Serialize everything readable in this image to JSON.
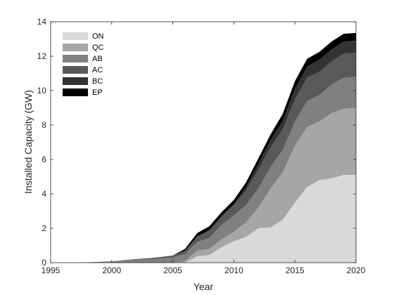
{
  "chart_data": {
    "type": "area",
    "stacked": true,
    "title": "",
    "xlabel": "Year",
    "ylabel": "Installed Capacity (GW)",
    "xlim": [
      1995,
      2020
    ],
    "ylim": [
      0,
      14
    ],
    "xticks": [
      "1995",
      "2000",
      "2005",
      "2010",
      "2015",
      "2020"
    ],
    "yticks": [
      "0",
      "2",
      "4",
      "6",
      "8",
      "10",
      "12",
      "14"
    ],
    "grid": false,
    "legend_position": "top-left",
    "x": [
      1995,
      1996,
      1997,
      1998,
      1999,
      2000,
      2001,
      2002,
      2003,
      2004,
      2005,
      2006,
      2007,
      2008,
      2009,
      2010,
      2011,
      2012,
      2013,
      2014,
      2015,
      2016,
      2017,
      2018,
      2019,
      2020
    ],
    "series": [
      {
        "name": "ON",
        "color": "#d9d9d9",
        "values": [
          0,
          0,
          0,
          0,
          0,
          0,
          0,
          0,
          0,
          0,
          0,
          0,
          0.38,
          0.45,
          0.9,
          1.25,
          1.5,
          2.0,
          2.05,
          2.5,
          3.5,
          4.4,
          4.8,
          4.9,
          5.1,
          5.1
        ]
      },
      {
        "name": "QC",
        "color": "#a6a6a6",
        "values": [
          0,
          0,
          0,
          0,
          0,
          0,
          0,
          0,
          0,
          0,
          0,
          0.1,
          0.32,
          0.35,
          0.45,
          0.55,
          0.85,
          1.2,
          2.25,
          2.75,
          3.3,
          3.5,
          3.4,
          3.8,
          3.85,
          3.9
        ]
      },
      {
        "name": "AB",
        "color": "#808080",
        "values": [
          0,
          0,
          0,
          0.02,
          0.05,
          0.08,
          0.13,
          0.17,
          0.2,
          0.25,
          0.3,
          0.4,
          0.5,
          0.65,
          0.85,
          0.95,
          1.0,
          1.1,
          1.25,
          1.3,
          1.4,
          1.5,
          1.55,
          1.65,
          1.8,
          1.8
        ]
      },
      {
        "name": "AC",
        "color": "#595959",
        "values": [
          0,
          0,
          0,
          0,
          0,
          0,
          0.02,
          0.04,
          0.06,
          0.08,
          0.12,
          0.2,
          0.32,
          0.45,
          0.5,
          0.6,
          0.85,
          1.1,
          1.15,
          1.2,
          1.3,
          1.35,
          1.35,
          1.35,
          1.4,
          1.4
        ]
      },
      {
        "name": "BC",
        "color": "#333333",
        "values": [
          0,
          0,
          0,
          0,
          0,
          0,
          0,
          0,
          0,
          0,
          0,
          0,
          0,
          0,
          0,
          0.05,
          0.2,
          0.35,
          0.4,
          0.5,
          0.6,
          0.65,
          0.7,
          0.7,
          0.7,
          0.7
        ]
      },
      {
        "name": "EP",
        "color": "#000000",
        "values": [
          0,
          0,
          0,
          0,
          0,
          0,
          0,
          0,
          0,
          0,
          0,
          0.1,
          0.2,
          0.22,
          0.24,
          0.25,
          0.27,
          0.3,
          0.35,
          0.4,
          0.45,
          0.45,
          0.45,
          0.45,
          0.45,
          0.45
        ]
      }
    ]
  }
}
